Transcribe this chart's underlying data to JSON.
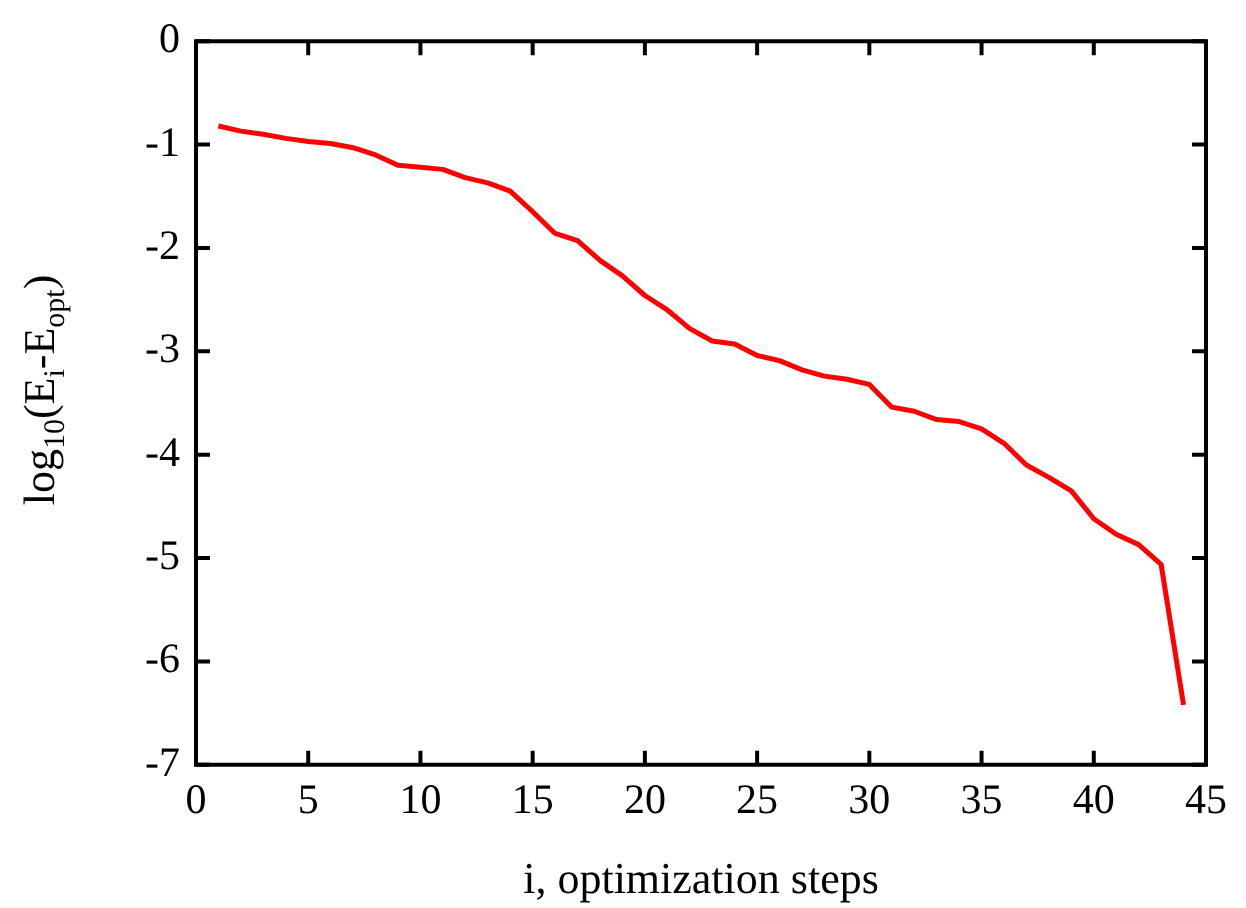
{
  "chart_data": {
    "type": "line",
    "xlabel": "i, optimization steps",
    "ylabel": "log$_{10}$(E$_{i}$-E$_{opt}$)",
    "x": [
      1,
      2,
      3,
      4,
      5,
      6,
      7,
      8,
      9,
      10,
      11,
      12,
      13,
      14,
      15,
      16,
      17,
      18,
      19,
      20,
      21,
      22,
      23,
      24,
      25,
      26,
      27,
      28,
      29,
      30,
      31,
      32,
      33,
      34,
      35,
      36,
      37,
      38,
      39,
      40,
      41,
      42,
      43,
      44
    ],
    "series": [
      {
        "color": "#ff0000",
        "values": [
          -0.82,
          -0.87,
          -0.9,
          -0.94,
          -0.97,
          -0.99,
          -1.03,
          -1.1,
          -1.2,
          -1.22,
          -1.24,
          -1.32,
          -1.37,
          -1.45,
          -1.65,
          -1.86,
          -1.93,
          -2.12,
          -2.27,
          -2.46,
          -2.6,
          -2.78,
          -2.9,
          -2.93,
          -3.04,
          -3.09,
          -3.18,
          -3.24,
          -3.27,
          -3.32,
          -3.54,
          -3.58,
          -3.66,
          -3.68,
          -3.75,
          -3.89,
          -4.1,
          -4.22,
          -4.35,
          -4.62,
          -4.77,
          -4.87,
          -5.06,
          -6.42
        ]
      }
    ],
    "xlim": [
      0,
      45
    ],
    "xticks": [
      0,
      5,
      10,
      15,
      20,
      25,
      30,
      35,
      40,
      45
    ],
    "ylim": [
      -7,
      0
    ],
    "yticks": [
      -7,
      -6,
      -5,
      -4,
      -3,
      -2,
      -1,
      0
    ],
    "grid": false,
    "legend": false,
    "marker": "none",
    "line_style": "solid"
  }
}
